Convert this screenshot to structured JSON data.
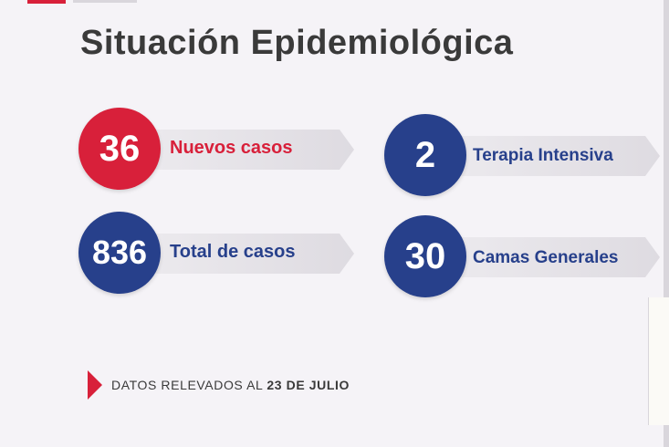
{
  "title": "Situación Epidemiológica",
  "stats": [
    {
      "value": "36",
      "label": "Nuevos casos"
    },
    {
      "value": "2",
      "label": "Terapia Intensiva"
    },
    {
      "value": "836",
      "label": "Total de casos"
    },
    {
      "value": "30",
      "label": "Camas Generales"
    }
  ],
  "footer": {
    "prefix": "DATOS RELEVADOS AL ",
    "date": "23 DE JULIO"
  },
  "colors": {
    "red": "#d8203a",
    "blue": "#27408b",
    "background": "#f5f3f7",
    "text": "#3a3a3a"
  },
  "icons": {
    "footer_marker": "triangle-right-icon"
  }
}
